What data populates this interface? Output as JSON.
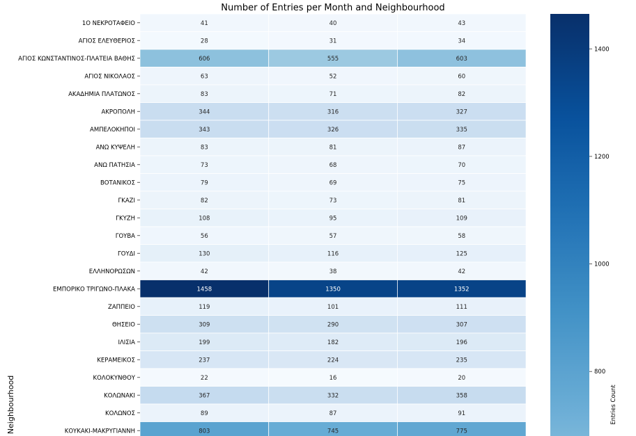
{
  "chart_data": {
    "type": "heatmap",
    "title": "Number of Entries per Month and Neighbourhood",
    "ylabel": "Neighbourhood",
    "colorbar_label": "Entries Count",
    "colormap": "Blues",
    "color_range": [
      0,
      1458
    ],
    "colorbar_ticks": [
      800,
      1000,
      1200,
      1400
    ],
    "colorbar_visible_range": [
      680,
      1465
    ],
    "rows": [
      {
        "label": "1Ο ΝΕΚΡΟΤΑΦΕΙΟ",
        "values": [
          41,
          40,
          43
        ]
      },
      {
        "label": "ΑΓΙΟΣ ΕΛΕΥΘΕΡΙΟΣ",
        "values": [
          28,
          31,
          34
        ]
      },
      {
        "label": "ΑΓΙΟΣ ΚΩΝΣΤΑΝΤΙΝΟΣ-ΠΛΑΤΕΙΑ ΒΑΘΗΣ",
        "values": [
          606,
          555,
          603
        ]
      },
      {
        "label": "ΑΓΙΟΣ ΝΙΚΟΛΑΟΣ",
        "values": [
          63,
          52,
          60
        ]
      },
      {
        "label": "ΑΚΑΔΗΜΙΑ ΠΛΑΤΩΝΟΣ",
        "values": [
          83,
          71,
          82
        ]
      },
      {
        "label": "ΑΚΡΟΠΟΛΗ",
        "values": [
          344,
          316,
          327
        ]
      },
      {
        "label": "ΑΜΠΕΛΟΚΗΠΟΙ",
        "values": [
          343,
          326,
          335
        ]
      },
      {
        "label": "ΑΝΩ ΚΥΨΕΛΗ",
        "values": [
          83,
          81,
          87
        ]
      },
      {
        "label": "ΑΝΩ ΠΑΤΗΣΙΑ",
        "values": [
          73,
          68,
          70
        ]
      },
      {
        "label": "ΒΟΤΑΝΙΚΟΣ",
        "values": [
          79,
          69,
          75
        ]
      },
      {
        "label": "ΓΚΑΖΙ",
        "values": [
          82,
          73,
          81
        ]
      },
      {
        "label": "ΓΚΥΖΗ",
        "values": [
          108,
          95,
          109
        ]
      },
      {
        "label": "ΓΟΥΒΑ",
        "values": [
          56,
          57,
          58
        ]
      },
      {
        "label": "ΓΟΥΔΙ",
        "values": [
          130,
          116,
          125
        ]
      },
      {
        "label": "ΕΛΛΗΝΟΡΩΣΩΝ",
        "values": [
          42,
          38,
          42
        ]
      },
      {
        "label": "ΕΜΠΟΡΙΚΟ ΤΡΙΓΩΝΟ-ΠΛΑΚΑ",
        "values": [
          1458,
          1350,
          1352
        ]
      },
      {
        "label": "ΖΑΠΠΕΙΟ",
        "values": [
          119,
          101,
          111
        ]
      },
      {
        "label": "ΘΗΣΕΙΟ",
        "values": [
          309,
          290,
          307
        ]
      },
      {
        "label": "ΙΛΙΣΙΑ",
        "values": [
          199,
          182,
          196
        ]
      },
      {
        "label": "ΚΕΡΑΜΕΙΚΟΣ",
        "values": [
          237,
          224,
          235
        ]
      },
      {
        "label": "ΚΟΛΟΚΥΝΘΟΥ",
        "values": [
          22,
          16,
          20
        ]
      },
      {
        "label": "ΚΟΛΩΝΑΚΙ",
        "values": [
          367,
          332,
          358
        ]
      },
      {
        "label": "ΚΟΛΩΝΟΣ",
        "values": [
          89,
          87,
          91
        ]
      },
      {
        "label": "ΚΟΥΚΑΚΙ-ΜΑΚΡΥΓΙΑΝΝΗ",
        "values": [
          803,
          745,
          775
        ]
      }
    ]
  }
}
